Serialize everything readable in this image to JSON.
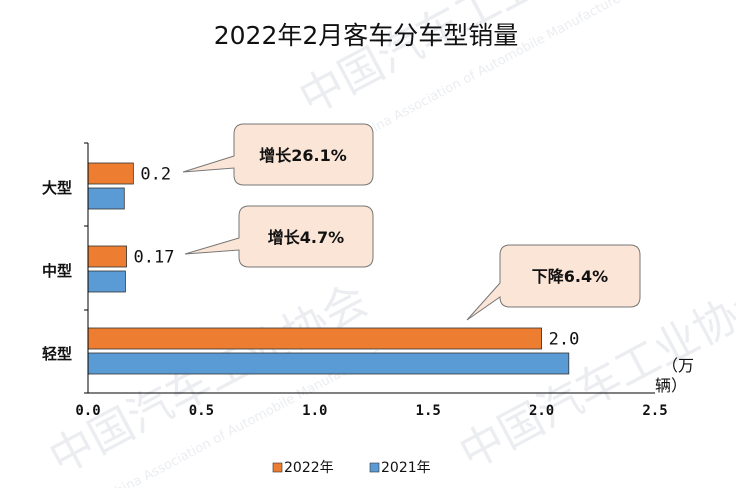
{
  "chart_data": {
    "type": "bar",
    "orientation": "horizontal",
    "title": "2022年2月客车分车型销量",
    "categories": [
      "大型",
      "中型",
      "轻型"
    ],
    "series": [
      {
        "name": "2022年",
        "values": [
          0.2,
          0.17,
          2.0
        ],
        "labels": [
          "0.2",
          "0.17",
          "2.0"
        ],
        "color": "#ed7d31"
      },
      {
        "name": "2021年",
        "values": [
          0.16,
          0.165,
          2.12
        ],
        "color": "#5b9bd5"
      }
    ],
    "xlim": [
      0,
      2.5
    ],
    "xticks": [
      "0.0",
      "0.5",
      "1.0",
      "1.5",
      "2.0",
      "2.5"
    ],
    "unit_label": [
      "（万",
      "辆）"
    ],
    "legend_position": "bottom",
    "annotations": [
      "增长26.1%",
      "增长4.7%",
      "下降6.4%"
    ],
    "callout_color": "#fbe5d6"
  },
  "watermark": {
    "text": "中国汽车工业协会",
    "subtext": "China Association of Automobile Manufacturers"
  }
}
